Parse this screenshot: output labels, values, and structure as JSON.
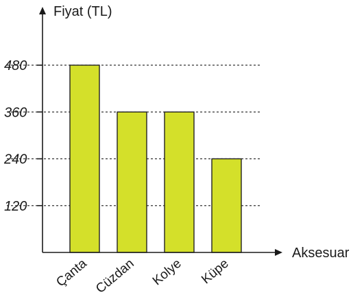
{
  "chart_data": {
    "type": "bar",
    "categories": [
      "Çanta",
      "Cüzdan",
      "Kolye",
      "Küpe"
    ],
    "values": [
      480,
      360,
      360,
      240
    ],
    "ylabel": "Fiyat (TL)",
    "xlabel": "Aksesuar",
    "yticks": [
      120,
      240,
      360,
      480
    ],
    "ylim": [
      0,
      480
    ],
    "grid": "dashed lines at tick values",
    "bar_color": "#d4e02a",
    "axis_color": "#1a1a1a"
  }
}
